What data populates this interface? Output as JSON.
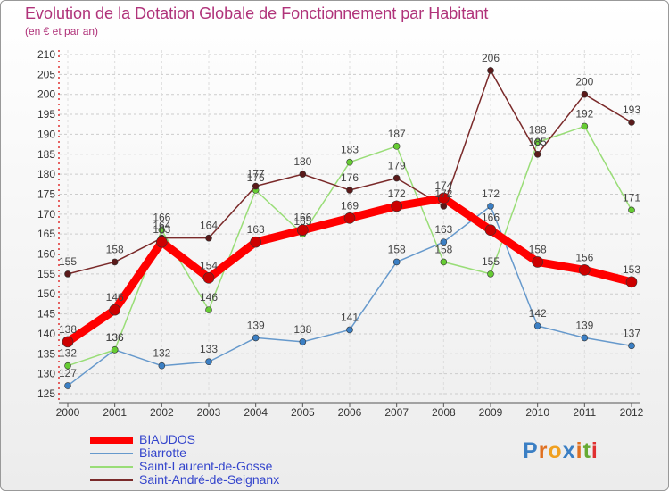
{
  "chart_data": {
    "type": "line",
    "title": "Evolution de la Dotation Globale de Fonctionnement par Habitant",
    "subtitle": "(en € et par an)",
    "categories": [
      "2000",
      "2001",
      "2002",
      "2003",
      "2004",
      "2005",
      "2006",
      "2007",
      "2008",
      "2009",
      "2010",
      "2011",
      "2012"
    ],
    "ylim": [
      125,
      210
    ],
    "yticks": [
      125,
      130,
      135,
      140,
      145,
      150,
      155,
      160,
      165,
      170,
      175,
      180,
      185,
      190,
      195,
      200,
      205,
      210
    ],
    "series": [
      {
        "name": "BIAUDOS",
        "color": "#ff0000",
        "marker": "#cc0000",
        "values": [
          138,
          146,
          163,
          154,
          163,
          166,
          169,
          172,
          174,
          166,
          158,
          156,
          153
        ]
      },
      {
        "name": "Biarrotte",
        "color": "#6699cc",
        "marker": "#3b7fc4",
        "values": [
          127,
          136,
          132,
          133,
          139,
          138,
          141,
          158,
          163,
          172,
          142,
          139,
          137
        ]
      },
      {
        "name": "Saint-Laurent-de-Gosse",
        "color": "#99dd77",
        "marker": "#66cc33",
        "values": [
          132,
          136,
          166,
          146,
          176,
          165,
          183,
          187,
          158,
          155,
          188,
          192,
          171
        ]
      },
      {
        "name": "Saint-André-de-Seignanx",
        "color": "#7a2a2a",
        "marker": "#5a1a1a",
        "values": [
          155,
          158,
          164,
          164,
          177,
          180,
          176,
          179,
          172,
          206,
          185,
          200,
          193
        ]
      }
    ],
    "legend_position": "bottom-left",
    "grid": true
  },
  "logo": {
    "text": "Proxiti"
  }
}
